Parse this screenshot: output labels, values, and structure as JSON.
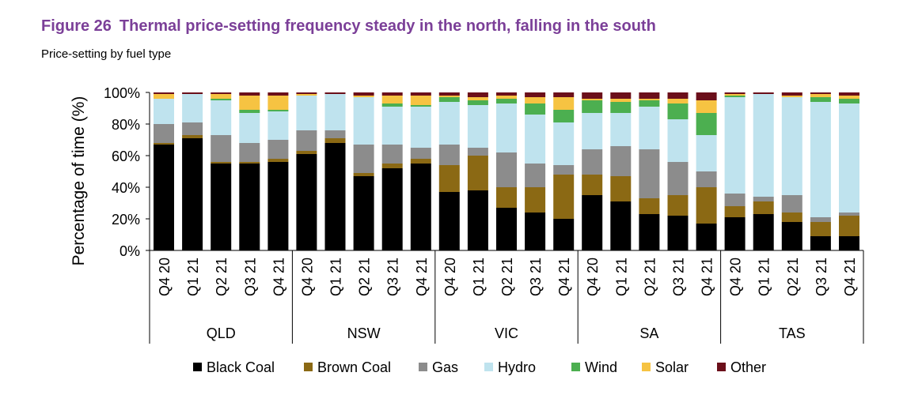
{
  "figure": {
    "number": "Figure 26",
    "title": "Thermal price-setting frequency steady in the north, falling in the south",
    "subtitle": "Price-setting by fuel type"
  },
  "chart_data": {
    "type": "bar",
    "stacked": true,
    "ylabel": "Percentage of time (%)",
    "ylim": [
      0,
      100
    ],
    "yticks": [
      "0%",
      "20%",
      "40%",
      "60%",
      "80%",
      "100%"
    ],
    "legend_position": "bottom",
    "groups": [
      {
        "name": "QLD",
        "quarters": [
          "Q4 20",
          "Q1 21",
          "Q2 21",
          "Q3 21",
          "Q4 21"
        ]
      },
      {
        "name": "NSW",
        "quarters": [
          "Q4 20",
          "Q1 21",
          "Q2 21",
          "Q3 21",
          "Q4 21"
        ]
      },
      {
        "name": "VIC",
        "quarters": [
          "Q4 20",
          "Q1 21",
          "Q2 21",
          "Q3 21",
          "Q4 21"
        ]
      },
      {
        "name": "SA",
        "quarters": [
          "Q4 20",
          "Q1 21",
          "Q2 21",
          "Q3 21",
          "Q4 21"
        ]
      },
      {
        "name": "TAS",
        "quarters": [
          "Q4 20",
          "Q1 21",
          "Q2 21",
          "Q3 21",
          "Q4 21"
        ]
      }
    ],
    "series": [
      {
        "name": "Black Coal",
        "color": "#000000",
        "values": [
          67,
          71,
          55,
          55,
          56,
          61,
          68,
          47,
          52,
          55,
          37,
          38,
          27,
          24,
          20,
          35,
          31,
          23,
          22,
          17,
          21,
          23,
          18,
          9,
          9
        ]
      },
      {
        "name": "Brown Coal",
        "color": "#8b6914",
        "values": [
          1,
          2,
          1,
          1,
          2,
          2,
          3,
          2,
          3,
          3,
          17,
          22,
          13,
          16,
          28,
          13,
          16,
          10,
          13,
          23,
          7,
          8,
          6,
          9,
          13
        ]
      },
      {
        "name": "Gas",
        "color": "#8c8c8c",
        "values": [
          12,
          8,
          17,
          12,
          12,
          13,
          5,
          18,
          12,
          7,
          13,
          5,
          22,
          15,
          6,
          16,
          19,
          31,
          21,
          10,
          8,
          3,
          11,
          3,
          2
        ]
      },
      {
        "name": "Hydro",
        "color": "#bfe3ee",
        "values": [
          16,
          18,
          22,
          19,
          18,
          22,
          23,
          30,
          24,
          26,
          27,
          27,
          31,
          31,
          27,
          23,
          21,
          27,
          27,
          23,
          61,
          65,
          62,
          73,
          69
        ]
      },
      {
        "name": "Wind",
        "color": "#4caf50",
        "values": [
          0,
          0,
          1,
          2,
          1,
          0,
          0,
          0,
          2,
          1,
          3,
          3,
          3,
          7,
          8,
          8,
          7,
          4,
          10,
          14,
          1,
          0,
          0,
          3,
          3
        ]
      },
      {
        "name": "Solar",
        "color": "#f6c342",
        "values": [
          3,
          0,
          3,
          9,
          9,
          1,
          0,
          1,
          5,
          6,
          1,
          2,
          2,
          4,
          8,
          1,
          2,
          1,
          3,
          8,
          1,
          0,
          1,
          2,
          2
        ]
      },
      {
        "name": "Other",
        "color": "#6b0f1a",
        "values": [
          1,
          1,
          1,
          2,
          2,
          1,
          1,
          2,
          2,
          2,
          2,
          3,
          2,
          3,
          3,
          4,
          4,
          4,
          4,
          5,
          1,
          1,
          2,
          1,
          2
        ]
      }
    ]
  }
}
